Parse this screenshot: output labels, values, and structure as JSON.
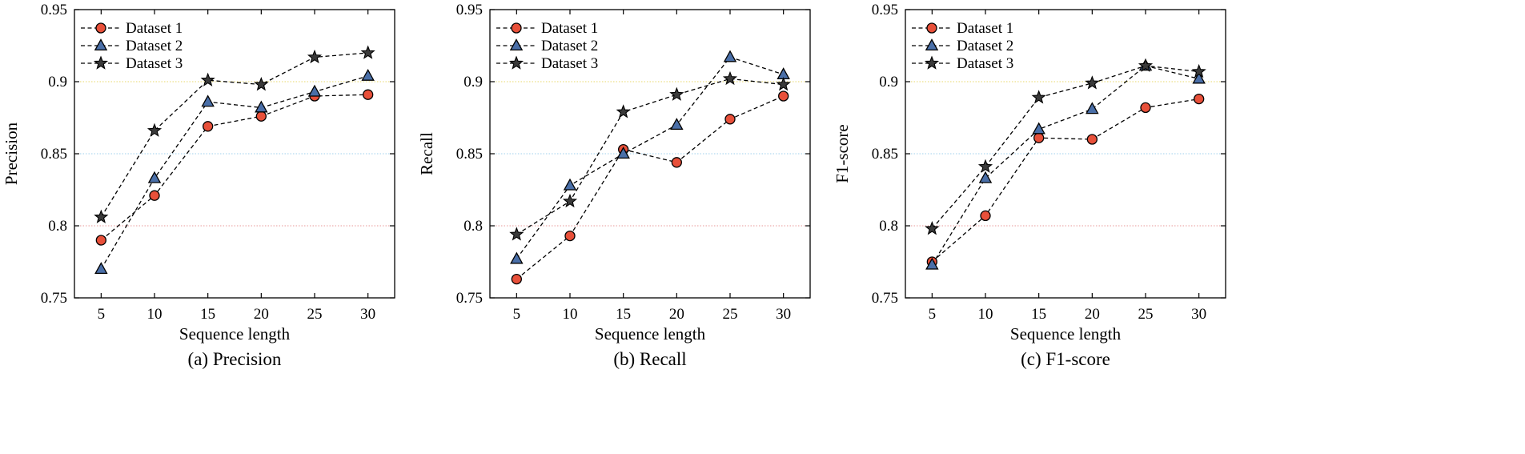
{
  "chart_data": [
    {
      "type": "line",
      "title": "Precision",
      "caption": "(a) Precision",
      "xlabel": "Sequence length",
      "ylabel": "Precision",
      "x": [
        5,
        10,
        15,
        20,
        25,
        30
      ],
      "xticks": [
        "5",
        "10",
        "15",
        "20",
        "25",
        "30"
      ],
      "ylim": [
        0.75,
        0.95
      ],
      "yticks": [
        "0.75",
        "0.8",
        "0.85",
        "0.9",
        "0.95"
      ],
      "legend_position": "top-left",
      "series": [
        {
          "name": "Dataset 1",
          "marker": "circle",
          "values": [
            0.79,
            0.821,
            0.869,
            0.876,
            0.89,
            0.891
          ]
        },
        {
          "name": "Dataset 2",
          "marker": "triangle",
          "values": [
            0.77,
            0.833,
            0.886,
            0.882,
            0.893,
            0.904
          ]
        },
        {
          "name": "Dataset 3",
          "marker": "star",
          "values": [
            0.806,
            0.866,
            0.901,
            0.898,
            0.917,
            0.92
          ]
        }
      ]
    },
    {
      "type": "line",
      "title": "Recall",
      "caption": "(b) Recall",
      "xlabel": "Sequence length",
      "ylabel": "Recall",
      "x": [
        5,
        10,
        15,
        20,
        25,
        30
      ],
      "xticks": [
        "5",
        "10",
        "15",
        "20",
        "25",
        "30"
      ],
      "ylim": [
        0.75,
        0.95
      ],
      "yticks": [
        "0.75",
        "0.8",
        "0.85",
        "0.9",
        "0.95"
      ],
      "legend_position": "top-left",
      "series": [
        {
          "name": "Dataset 1",
          "marker": "circle",
          "values": [
            0.763,
            0.793,
            0.853,
            0.844,
            0.874,
            0.89
          ]
        },
        {
          "name": "Dataset 2",
          "marker": "triangle",
          "values": [
            0.777,
            0.828,
            0.85,
            0.87,
            0.917,
            0.905
          ]
        },
        {
          "name": "Dataset 3",
          "marker": "star",
          "values": [
            0.794,
            0.817,
            0.879,
            0.891,
            0.902,
            0.898
          ]
        }
      ]
    },
    {
      "type": "line",
      "title": "F1-score",
      "caption": "(c) F1-score",
      "xlabel": "Sequence length",
      "ylabel": "F1-score",
      "x": [
        5,
        10,
        15,
        20,
        25,
        30
      ],
      "xticks": [
        "5",
        "10",
        "15",
        "20",
        "25",
        "30"
      ],
      "ylim": [
        0.75,
        0.95
      ],
      "yticks": [
        "0.75",
        "0.8",
        "0.85",
        "0.9",
        "0.95"
      ],
      "legend_position": "top-left",
      "series": [
        {
          "name": "Dataset 1",
          "marker": "circle",
          "values": [
            0.775,
            0.807,
            0.861,
            0.86,
            0.882,
            0.888
          ]
        },
        {
          "name": "Dataset 2",
          "marker": "triangle",
          "values": [
            0.773,
            0.833,
            0.867,
            0.881,
            0.911,
            0.902
          ]
        },
        {
          "name": "Dataset 3",
          "marker": "star",
          "values": [
            0.798,
            0.841,
            0.889,
            0.899,
            0.911,
            0.907
          ]
        }
      ]
    }
  ],
  "style": {
    "circle_fill": "#e8503a",
    "triangle_fill": "#4a6fa8",
    "star_fill": "#3a3a3a",
    "line_color": "#000000",
    "grid_colors": [
      "#e89a9a",
      "#9fd0ec",
      "#e8d86a"
    ]
  }
}
